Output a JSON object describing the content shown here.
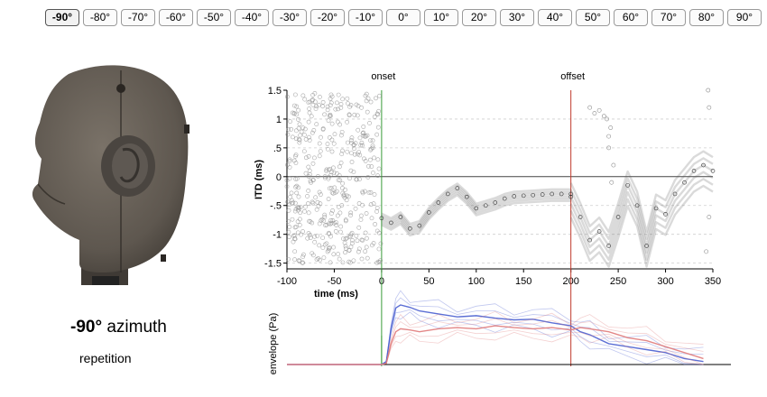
{
  "angle_selector": {
    "selected": "-90°",
    "buttons": [
      "-90°",
      "-80°",
      "-70°",
      "-60°",
      "-50°",
      "-40°",
      "-30°",
      "-20°",
      "-10°",
      "0°",
      "10°",
      "20°",
      "30°",
      "40°",
      "50°",
      "60°",
      "70°",
      "80°",
      "90°"
    ]
  },
  "caption": {
    "angle": "-90°",
    "word": "azimuth"
  },
  "repetition_label": "repetition",
  "chart_data": [
    {
      "type": "scatter",
      "ylabel": "ITD (ms)",
      "xlabel": "time (ms)",
      "xlim": [
        -100,
        350
      ],
      "ylim": [
        -1.6,
        1.5
      ],
      "x_ticks": [
        "-100",
        "-50",
        "0",
        "50",
        "100",
        "150",
        "200",
        "250",
        "300",
        "350"
      ],
      "y_ticks": [
        "1.5",
        "1",
        ".5",
        "0",
        "-.5",
        "-1",
        "-1.5"
      ],
      "grid": "horizontal dashed",
      "markers": [
        {
          "label": "onset",
          "x": 0,
          "color": "#3a9b3a"
        },
        {
          "label": "offset",
          "x": 200,
          "color": "#c0392b"
        }
      ],
      "series": [
        {
          "x": [
            0,
            10,
            20,
            30,
            40,
            50,
            60,
            70,
            80,
            90,
            100,
            110,
            120,
            130,
            140,
            150,
            160,
            170,
            180,
            190,
            200
          ],
          "values": [
            -0.72,
            -0.8,
            -0.7,
            -0.9,
            -0.85,
            -0.62,
            -0.45,
            -0.3,
            -0.2,
            -0.35,
            -0.55,
            -0.5,
            -0.45,
            -0.38,
            -0.34,
            -0.33,
            -0.32,
            -0.31,
            -0.3,
            -0.3,
            -0.3
          ]
        },
        {
          "x": [
            200,
            210,
            220,
            230,
            240,
            250,
            260,
            270,
            280,
            290,
            300,
            310,
            320,
            330,
            340,
            350
          ],
          "values": [
            -0.35,
            -0.7,
            -1.1,
            -0.95,
            -1.2,
            -0.7,
            -0.15,
            -0.5,
            -1.2,
            -0.55,
            -0.65,
            -0.3,
            -0.1,
            0.1,
            0.2,
            0.1
          ]
        }
      ]
    },
    {
      "type": "line",
      "ylabel": "envelope (Pa)",
      "xlim": [
        -100,
        350
      ],
      "series": [
        {
          "color": "#4a5fd0",
          "x": [
            -100,
            0,
            5,
            10,
            15,
            20,
            30,
            40,
            60,
            80,
            100,
            120,
            140,
            160,
            180,
            200,
            210,
            220,
            240,
            260,
            280,
            300,
            320,
            340
          ],
          "values": [
            0,
            0,
            0.05,
            0.6,
            0.95,
            1.0,
            0.96,
            0.9,
            0.85,
            0.8,
            0.82,
            0.78,
            0.75,
            0.76,
            0.7,
            0.65,
            0.55,
            0.5,
            0.35,
            0.3,
            0.25,
            0.2,
            0.1,
            0.05
          ]
        },
        {
          "color": "#e07a7a",
          "x": [
            -100,
            0,
            5,
            10,
            15,
            20,
            30,
            40,
            60,
            80,
            100,
            120,
            140,
            160,
            180,
            200,
            210,
            220,
            240,
            260,
            280,
            300,
            320,
            340
          ],
          "values": [
            0,
            0,
            0.02,
            0.35,
            0.55,
            0.6,
            0.58,
            0.55,
            0.6,
            0.62,
            0.6,
            0.65,
            0.62,
            0.6,
            0.62,
            0.58,
            0.62,
            0.6,
            0.55,
            0.45,
            0.4,
            0.3,
            0.2,
            0.1
          ]
        }
      ]
    }
  ]
}
